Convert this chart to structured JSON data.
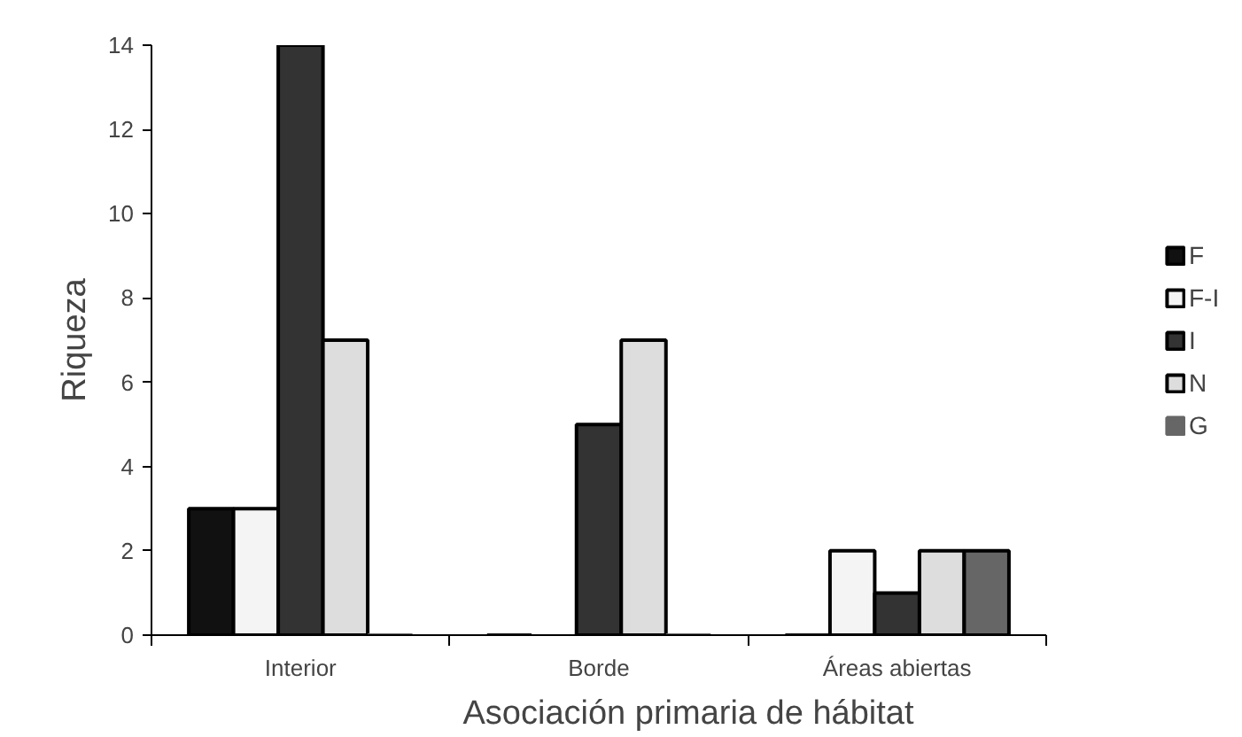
{
  "chart_data": {
    "type": "bar",
    "categories": [
      "Interior",
      "Borde",
      "Áreas abiertas"
    ],
    "series": [
      {
        "name": "F",
        "color": "#111111",
        "values": [
          3,
          0,
          0
        ]
      },
      {
        "name": "F-I",
        "color": "#f4f4f4",
        "values": [
          3,
          0,
          2
        ]
      },
      {
        "name": "I",
        "color": "#333333",
        "values": [
          14,
          5,
          1
        ]
      },
      {
        "name": "N",
        "color": "#dddddd",
        "values": [
          7,
          7,
          2
        ]
      },
      {
        "name": "G",
        "color": "#666666",
        "values": [
          0,
          0,
          2
        ]
      }
    ],
    "xlabel": "Asociación primaria de hábitat",
    "ylabel": "Riqueza",
    "ylim": [
      0,
      14
    ],
    "yticks": [
      0,
      2,
      4,
      6,
      8,
      10,
      12,
      14
    ],
    "grid": false,
    "legend": "right"
  }
}
